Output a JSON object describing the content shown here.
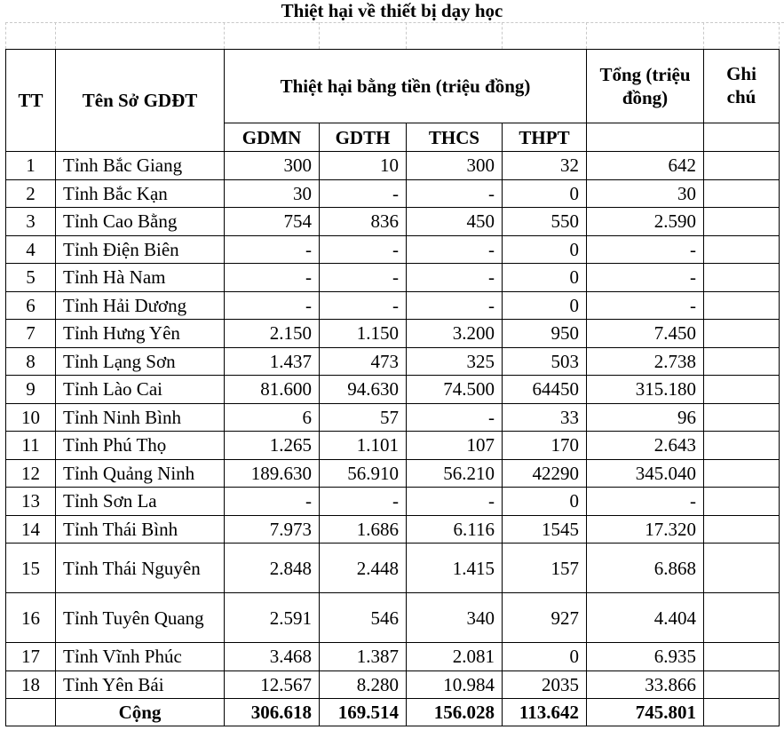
{
  "title": "Thiệt hại về thiết bị dạy học",
  "headers": {
    "tt": "TT",
    "name": "Tên Sở GDĐT",
    "money": "Thiệt hại bằng tiền (triệu đồng)",
    "total": "Tổng (triệu đồng)",
    "note": "Ghi chú",
    "sub": [
      "GDMN",
      "GDTH",
      "THCS",
      "THPT"
    ]
  },
  "rows": [
    {
      "tt": "1",
      "name": "Tỉnh Bắc Giang",
      "v": [
        "300",
        "10",
        "300",
        "32"
      ],
      "total": "642"
    },
    {
      "tt": "2",
      "name": "Tỉnh Bắc Kạn",
      "v": [
        "30",
        "-",
        "-",
        "0"
      ],
      "total": "30"
    },
    {
      "tt": "3",
      "name": "Tỉnh Cao Bằng",
      "v": [
        "754",
        "836",
        "450",
        "550"
      ],
      "total": "2.590"
    },
    {
      "tt": "4",
      "name": "Tỉnh Điện Biên",
      "v": [
        "-",
        "-",
        "-",
        "0"
      ],
      "total": "-"
    },
    {
      "tt": "5",
      "name": "Tỉnh Hà Nam",
      "v": [
        "-",
        "-",
        "-",
        "0"
      ],
      "total": "-"
    },
    {
      "tt": "6",
      "name": "Tỉnh Hải Dương",
      "v": [
        "-",
        "-",
        "-",
        "0"
      ],
      "total": "-"
    },
    {
      "tt": "7",
      "name": "Tỉnh Hưng Yên",
      "v": [
        "2.150",
        "1.150",
        "3.200",
        "950"
      ],
      "total": "7.450"
    },
    {
      "tt": "8",
      "name": "Tỉnh Lạng Sơn",
      "v": [
        "1.437",
        "473",
        "325",
        "503"
      ],
      "total": "2.738"
    },
    {
      "tt": "9",
      "name": "Tỉnh Lào Cai",
      "v": [
        "81.600",
        "94.630",
        "74.500",
        "64450"
      ],
      "total": "315.180"
    },
    {
      "tt": "10",
      "name": "Tỉnh Ninh Bình",
      "v": [
        "6",
        "57",
        "-",
        "33"
      ],
      "total": "96"
    },
    {
      "tt": "11",
      "name": "Tỉnh Phú Thọ",
      "v": [
        "1.265",
        "1.101",
        "107",
        "170"
      ],
      "total": "2.643"
    },
    {
      "tt": "12",
      "name": "Tỉnh Quảng Ninh",
      "v": [
        "189.630",
        "56.910",
        "56.210",
        "42290"
      ],
      "total": "345.040"
    },
    {
      "tt": "13",
      "name": "Tỉnh Sơn La",
      "v": [
        "-",
        "-",
        "-",
        "0"
      ],
      "total": "-"
    },
    {
      "tt": "14",
      "name": "Tỉnh Thái Bình",
      "v": [
        "7.973",
        "1.686",
        "6.116",
        "1545"
      ],
      "total": "17.320"
    },
    {
      "tt": "15",
      "name": "Tỉnh Thái Nguyên",
      "v": [
        "2.848",
        "2.448",
        "1.415",
        "157"
      ],
      "total": "6.868"
    },
    {
      "tt": "16",
      "name": "Tỉnh Tuyên Quang",
      "v": [
        "2.591",
        "546",
        "340",
        "927"
      ],
      "total": "4.404"
    },
    {
      "tt": "17",
      "name": "Tỉnh Vĩnh Phúc",
      "v": [
        "3.468",
        "1.387",
        "2.081",
        "0"
      ],
      "total": "6.935"
    },
    {
      "tt": "18",
      "name": "Tỉnh Yên Bái",
      "v": [
        "12.567",
        "8.280",
        "10.984",
        "2035"
      ],
      "total": "33.866"
    }
  ],
  "total_row": {
    "label": "Cộng",
    "v": [
      "306.618",
      "169.514",
      "156.028",
      "113.642"
    ],
    "total": "745.801"
  }
}
